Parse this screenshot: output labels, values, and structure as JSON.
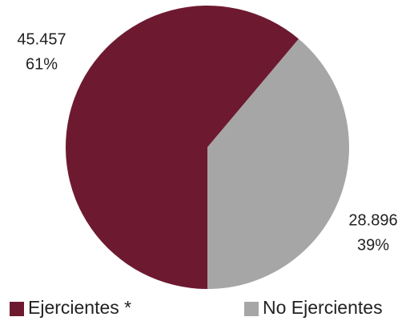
{
  "chart_data": {
    "type": "pie",
    "categories": [
      "Ejercientes *",
      "No Ejercientes"
    ],
    "values": [
      45457,
      28896
    ],
    "value_labels": [
      "45.457",
      "28.896"
    ],
    "percentages": [
      61,
      39
    ],
    "percentage_labels": [
      "61%",
      "39%"
    ],
    "colors": [
      "#6d1a30",
      "#a6a6a6"
    ],
    "legend": "bottom"
  }
}
